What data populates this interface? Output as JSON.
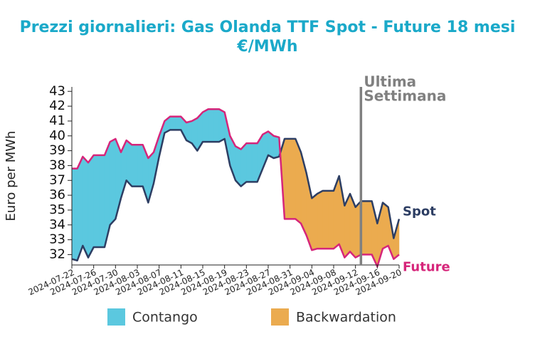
{
  "chart_data": {
    "type": "line",
    "title": "Prezzi giornalieri: Gas Olanda TTF Spot - Future 18 mesi",
    "subtitle": "€/MWh",
    "y_label": "Euro per MWh",
    "x": [
      "2024-07-22",
      "2024-07-23",
      "2024-07-24",
      "2024-07-25",
      "2024-07-26",
      "2024-07-27",
      "2024-07-28",
      "2024-07-29",
      "2024-07-30",
      "2024-07-31",
      "2024-08-01",
      "2024-08-02",
      "2024-08-03",
      "2024-08-04",
      "2024-08-05",
      "2024-08-06",
      "2024-08-07",
      "2024-08-08",
      "2024-08-09",
      "2024-08-10",
      "2024-08-11",
      "2024-08-12",
      "2024-08-13",
      "2024-08-14",
      "2024-08-15",
      "2024-08-16",
      "2024-08-17",
      "2024-08-18",
      "2024-08-19",
      "2024-08-20",
      "2024-08-21",
      "2024-08-22",
      "2024-08-23",
      "2024-08-24",
      "2024-08-25",
      "2024-08-26",
      "2024-08-27",
      "2024-08-28",
      "2024-08-29",
      "2024-08-30",
      "2024-08-31",
      "2024-09-01",
      "2024-09-02",
      "2024-09-03",
      "2024-09-04",
      "2024-09-05",
      "2024-09-06",
      "2024-09-07",
      "2024-09-08",
      "2024-09-09",
      "2024-09-10",
      "2024-09-11",
      "2024-09-12",
      "2024-09-13",
      "2024-09-14",
      "2024-09-15",
      "2024-09-16",
      "2024-09-17",
      "2024-09-18",
      "2024-09-19",
      "2024-09-20"
    ],
    "series": [
      {
        "name": "Spot",
        "color": "#2d3e63",
        "values": [
          31.7,
          31.6,
          32.6,
          31.8,
          32.5,
          32.5,
          32.5,
          34.0,
          34.4,
          35.8,
          37.0,
          36.6,
          36.6,
          36.6,
          35.5,
          36.8,
          38.6,
          40.2,
          40.4,
          40.4,
          40.4,
          39.7,
          39.5,
          39.0,
          39.6,
          39.6,
          39.6,
          39.6,
          39.8,
          38.0,
          37.0,
          36.6,
          36.9,
          36.9,
          36.9,
          37.8,
          38.7,
          38.5,
          38.6,
          39.8,
          39.8,
          39.8,
          38.9,
          37.5,
          35.8,
          36.1,
          36.3,
          36.3,
          36.3,
          37.3,
          35.3,
          36.1,
          35.2,
          35.6,
          35.6,
          35.6,
          34.1,
          35.5,
          35.2,
          33.1,
          34.4
        ]
      },
      {
        "name": "Future",
        "color": "#d6257a",
        "values": [
          37.8,
          37.8,
          38.6,
          38.2,
          38.7,
          38.7,
          38.7,
          39.6,
          39.8,
          38.9,
          39.7,
          39.4,
          39.4,
          39.4,
          38.5,
          38.9,
          40.0,
          41.0,
          41.3,
          41.3,
          41.3,
          40.9,
          41.0,
          41.2,
          41.6,
          41.8,
          41.8,
          41.8,
          41.6,
          40.0,
          39.3,
          39.1,
          39.5,
          39.5,
          39.5,
          40.1,
          40.3,
          40.0,
          39.9,
          34.4,
          34.4,
          34.4,
          34.1,
          33.3,
          32.3,
          32.4,
          32.4,
          32.4,
          32.4,
          32.7,
          31.8,
          32.2,
          31.8,
          32.0,
          32.0,
          32.0,
          31.2,
          32.4,
          32.6,
          31.7,
          32.0
        ]
      }
    ],
    "fill_legend": [
      {
        "name": "Contango",
        "color": "#5bc8df"
      },
      {
        "name": "Backwardation",
        "color": "#ebab4f"
      }
    ],
    "xlim": [
      "2024-07-22",
      "2024-09-20"
    ],
    "xticks": [
      "2024-07-22",
      "2024-07-26",
      "2024-07-30",
      "2024-08-03",
      "2024-08-07",
      "2024-08-11",
      "2024-08-15",
      "2024-08-19",
      "2024-08-23",
      "2024-08-27",
      "2024-08-31",
      "2024-09-04",
      "2024-09-08",
      "2024-09-12",
      "2024-09-16",
      "2024-09-20"
    ],
    "ylim": [
      31.3,
      43.3
    ],
    "yticks": [
      32,
      33,
      34,
      35,
      36,
      37,
      38,
      39,
      40,
      41,
      42,
      43
    ],
    "annotation": {
      "x": "2024-09-13",
      "lines": [
        "Ultima",
        "Settimana"
      ],
      "color": "#808080"
    }
  }
}
